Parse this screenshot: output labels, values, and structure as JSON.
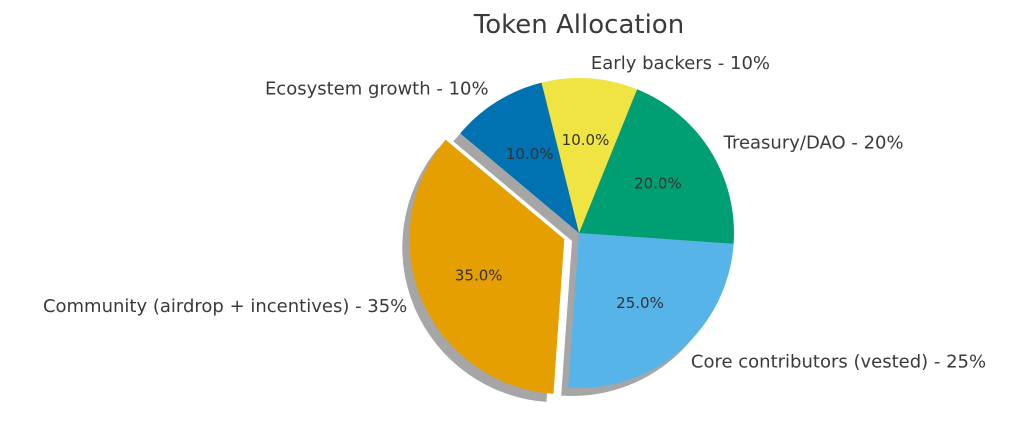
{
  "chart_data": {
    "type": "pie",
    "title": "Token Allocation",
    "slices": [
      {
        "label": "Community (airdrop + incentives) - 35%",
        "value": 35,
        "pct_label": "35.0%",
        "color": "#E69F00",
        "exploded": true
      },
      {
        "label": "Core contributors (vested) - 25%",
        "value": 25,
        "pct_label": "25.0%",
        "color": "#56B4E9",
        "exploded": false
      },
      {
        "label": "Treasury/DAO - 20%",
        "value": 20,
        "pct_label": "20.0%",
        "color": "#009E73",
        "exploded": false
      },
      {
        "label": "Early backers - 10%",
        "value": 10,
        "pct_label": "10.0%",
        "color": "#F0E442",
        "exploded": false
      },
      {
        "label": "Ecosystem growth - 10%",
        "value": 10,
        "pct_label": "10.0%",
        "color": "#0072B2",
        "exploded": false
      }
    ],
    "start_angle": 140,
    "direction": "counterclockwise",
    "shadow": true
  }
}
